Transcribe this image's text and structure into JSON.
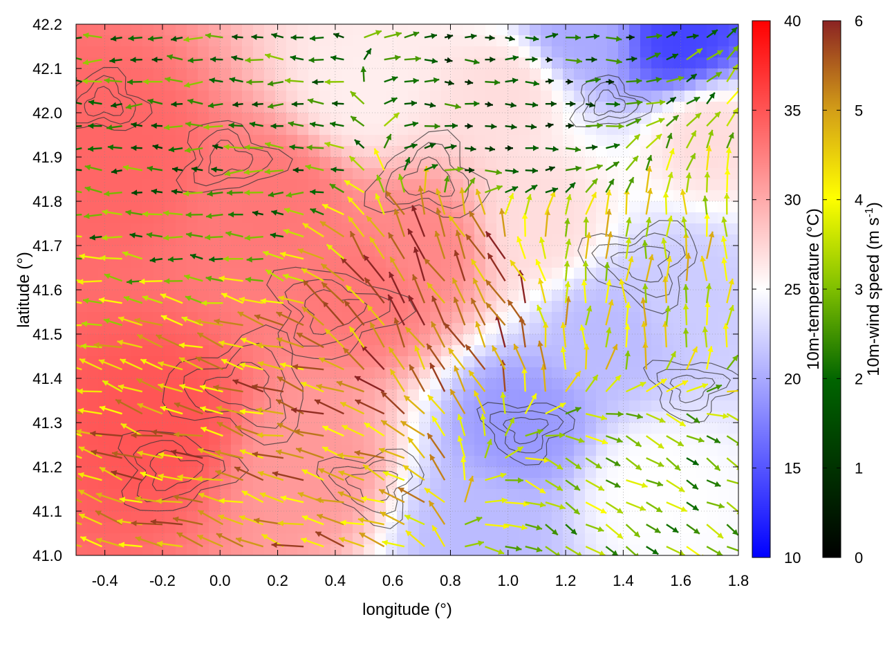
{
  "chart_data": {
    "type": "heatmap",
    "subtype": "vector-field-over-temperature-map-with-contours",
    "title": "",
    "xlabel": "longitude (°)",
    "ylabel": "latitude (°)",
    "xlim": [
      -0.5,
      1.8
    ],
    "ylim": [
      41.0,
      42.2
    ],
    "xticks": [
      -0.4,
      -0.2,
      0.0,
      0.2,
      0.4,
      0.6,
      0.8,
      1.0,
      1.2,
      1.4,
      1.6,
      1.8
    ],
    "xtick_labels": [
      "-0.4",
      "-0.2",
      "0.0",
      "0.2",
      "0.4",
      "0.6",
      "0.8",
      "1.0",
      "1.2",
      "1.4",
      "1.6",
      "1.8"
    ],
    "yticks": [
      41.0,
      41.1,
      41.2,
      41.3,
      41.4,
      41.5,
      41.6,
      41.7,
      41.8,
      41.9,
      42.0,
      42.1,
      42.2
    ],
    "ytick_labels": [
      "41.0",
      "41.1",
      "41.2",
      "41.3",
      "41.4",
      "41.5",
      "41.6",
      "41.7",
      "41.8",
      "41.9",
      "42.0",
      "42.1",
      "42.2"
    ],
    "grid": true,
    "temperature_colorbar": {
      "label": "10m-temperature (°C)",
      "range": [
        10,
        40
      ],
      "ticks": [
        10,
        15,
        20,
        25,
        30,
        35,
        40
      ],
      "colors": [
        "#0000ff",
        "#ffffff",
        "#ff0000"
      ]
    },
    "wind_colorbar": {
      "label_main": "10m-wind speed (m s",
      "label_sup": "-1",
      "label_end": ")",
      "range": [
        0,
        6
      ],
      "ticks": [
        0,
        1,
        2,
        3,
        4,
        5,
        6
      ],
      "colors": [
        "#000000",
        "#006400",
        "#7fbf00",
        "#ffff00",
        "#d4a017",
        "#a0522d",
        "#8b2323"
      ]
    },
    "temperature_centers": [
      {
        "lon": -0.35,
        "lat": 41.9,
        "t": 34
      },
      {
        "lon": -0.2,
        "lat": 41.3,
        "t": 35
      },
      {
        "lon": 0.2,
        "lat": 41.8,
        "t": 33
      },
      {
        "lon": 0.5,
        "lat": 41.6,
        "t": 33
      },
      {
        "lon": 0.3,
        "lat": 41.2,
        "t": 31
      },
      {
        "lon": 0.7,
        "lat": 41.7,
        "t": 32
      },
      {
        "lon": 0.5,
        "lat": 42.05,
        "t": 26
      },
      {
        "lon": 1.0,
        "lat": 42.05,
        "t": 27
      },
      {
        "lon": 1.6,
        "lat": 42.17,
        "t": 14
      },
      {
        "lon": 1.25,
        "lat": 42.18,
        "t": 20
      },
      {
        "lon": 1.05,
        "lat": 41.3,
        "t": 19
      },
      {
        "lon": 0.9,
        "lat": 41.05,
        "t": 21
      },
      {
        "lon": 1.35,
        "lat": 41.5,
        "t": 21
      },
      {
        "lon": 1.6,
        "lat": 41.6,
        "t": 22
      },
      {
        "lon": 1.5,
        "lat": 41.15,
        "t": 25
      },
      {
        "lon": 1.7,
        "lat": 41.95,
        "t": 27
      },
      {
        "lon": 1.1,
        "lat": 41.75,
        "t": 27
      }
    ],
    "wind_regimes": [
      {
        "region": "north-west",
        "lon": [
          -0.5,
          0.6
        ],
        "lat": [
          41.6,
          42.2
        ],
        "direction_deg": 180,
        "speed": 2.2
      },
      {
        "region": "north-center",
        "lon": [
          0.6,
          1.4
        ],
        "lat": [
          41.8,
          42.2
        ],
        "direction_deg": 0,
        "speed": 1.5
      },
      {
        "region": "south-west",
        "lon": [
          -0.5,
          0.8
        ],
        "lat": [
          41.0,
          41.6
        ],
        "direction_deg": 165,
        "speed": 5.0
      },
      {
        "region": "center",
        "lon": [
          0.5,
          1.1
        ],
        "lat": [
          41.4,
          41.8
        ],
        "direction_deg": 120,
        "speed": 5.5
      },
      {
        "region": "east",
        "lon": [
          1.1,
          1.8
        ],
        "lat": [
          41.3,
          41.9
        ],
        "direction_deg": 90,
        "speed": 4.0
      },
      {
        "region": "south-east",
        "lon": [
          1.2,
          1.8
        ],
        "lat": [
          41.0,
          41.3
        ],
        "direction_deg": -30,
        "speed": 3.0
      }
    ]
  }
}
